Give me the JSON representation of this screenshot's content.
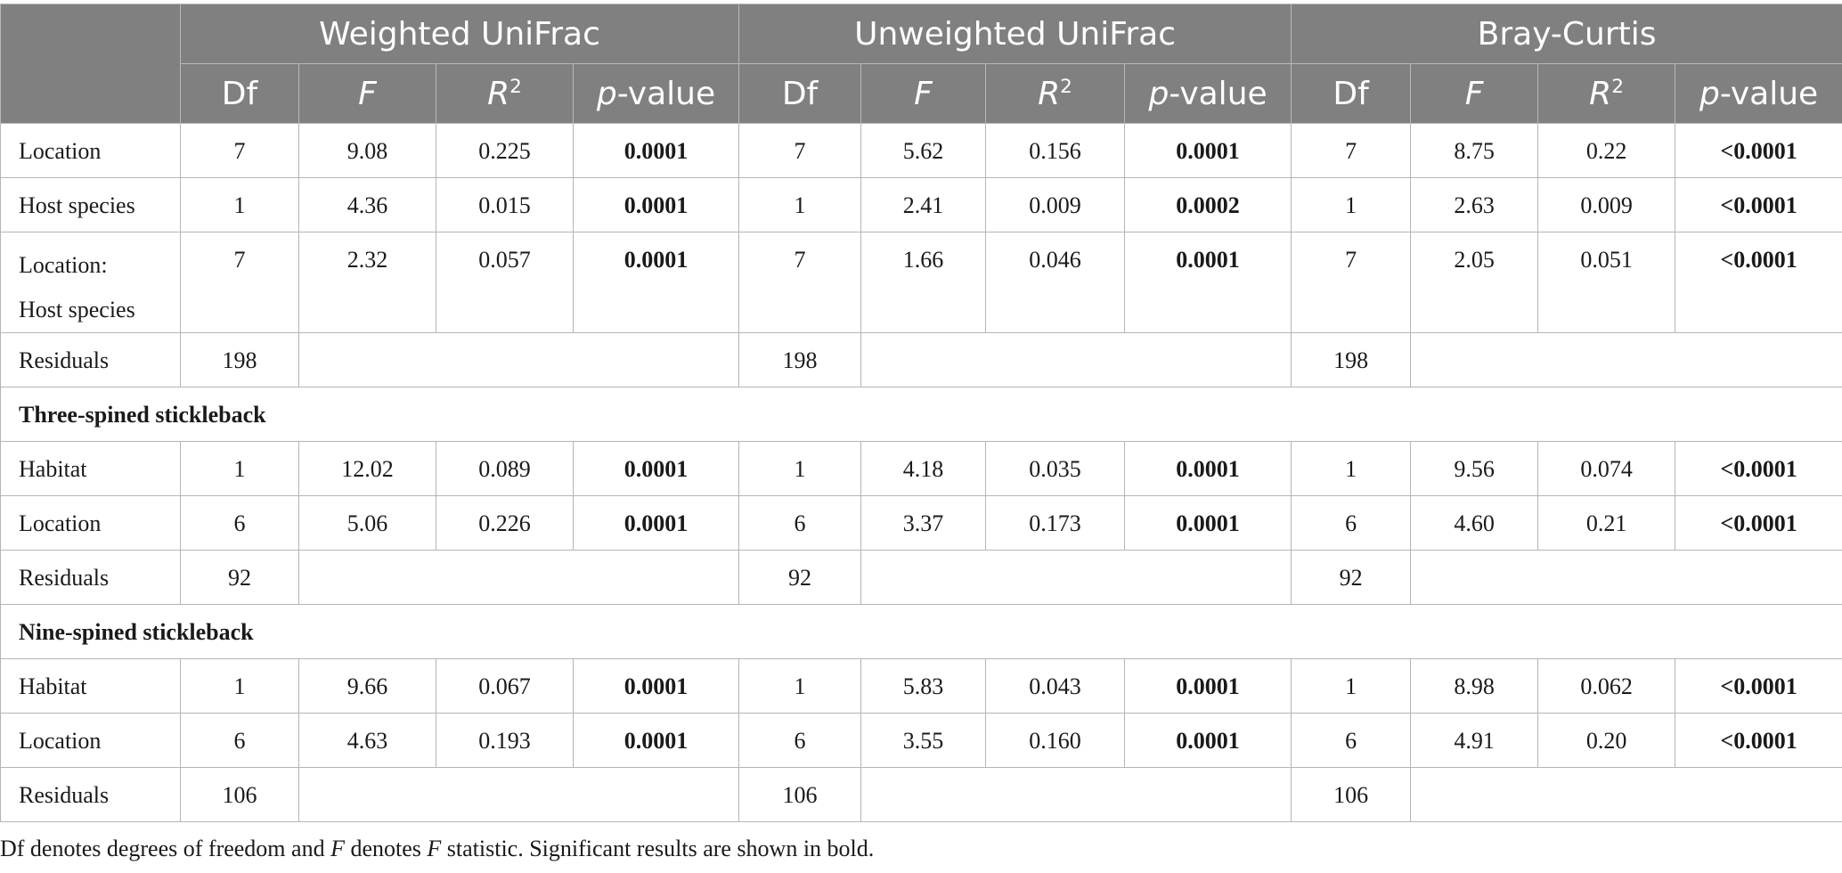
{
  "header": {
    "groups": [
      "Weighted UniFrac",
      "Unweighted UniFrac",
      "Bray-Curtis"
    ],
    "df": "Df",
    "f": "F",
    "r": "R",
    "r_sup": "2",
    "p_italic": "p",
    "p_rest": "-value"
  },
  "rows": [
    {
      "label": "Location",
      "cells": [
        "7",
        "9.08",
        "0.225",
        "0.0001",
        "7",
        "5.62",
        "0.156",
        "0.0001",
        "7",
        "8.75",
        "0.22",
        "<0.0001"
      ]
    },
    {
      "label": "Host species",
      "cells": [
        "1",
        "4.36",
        "0.015",
        "0.0001",
        "1",
        "2.41",
        "0.009",
        "0.0002",
        "1",
        "2.63",
        "0.009",
        "<0.0001"
      ]
    },
    {
      "label_lines": [
        "Location:",
        "Host species"
      ],
      "cells": [
        "7",
        "2.32",
        "0.057",
        "0.0001",
        "7",
        "1.66",
        "0.046",
        "0.0001",
        "7",
        "2.05",
        "0.051",
        "<0.0001"
      ]
    },
    {
      "label": "Residuals",
      "df": [
        "198",
        "198",
        "198"
      ]
    },
    {
      "section": "Three-spined stickleback"
    },
    {
      "label": "Habitat",
      "cells": [
        "1",
        "12.02",
        "0.089",
        "0.0001",
        "1",
        "4.18",
        "0.035",
        "0.0001",
        "1",
        "9.56",
        "0.074",
        "<0.0001"
      ]
    },
    {
      "label": "Location",
      "cells": [
        "6",
        "5.06",
        "0.226",
        "0.0001",
        "6",
        "3.37",
        "0.173",
        "0.0001",
        "6",
        "4.60",
        "0.21",
        "<0.0001"
      ]
    },
    {
      "label": "Residuals",
      "df": [
        "92",
        "92",
        "92"
      ]
    },
    {
      "section": "Nine-spined stickleback"
    },
    {
      "label": "Habitat",
      "cells": [
        "1",
        "9.66",
        "0.067",
        "0.0001",
        "1",
        "5.83",
        "0.043",
        "0.0001",
        "1",
        "8.98",
        "0.062",
        "<0.0001"
      ]
    },
    {
      "label": "Location",
      "cells": [
        "6",
        "4.63",
        "0.193",
        "0.0001",
        "6",
        "3.55",
        "0.160",
        "0.0001",
        "6",
        "4.91",
        "0.20",
        "<0.0001"
      ]
    },
    {
      "label": "Residuals",
      "df": [
        "106",
        "106",
        "106"
      ]
    }
  ],
  "footnote": {
    "part1": "Df denotes degrees of freedom and ",
    "f": "F",
    "part2": " denotes ",
    "f2": "F",
    "part3": " statistic. Significant results are shown in bold."
  }
}
